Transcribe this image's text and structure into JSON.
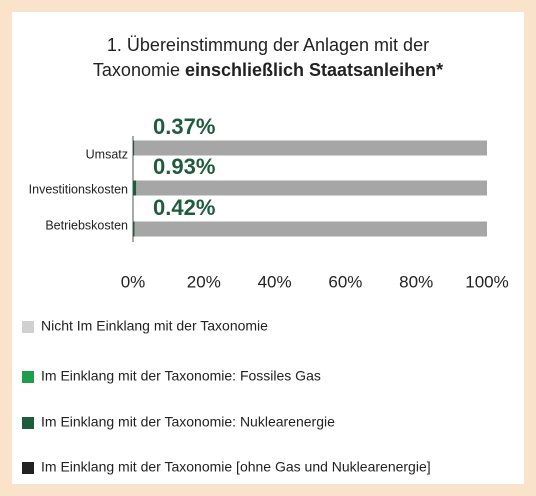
{
  "chart_data": {
    "type": "stacked_barh",
    "title_lines": [
      "1. Übereinstimmung der Anlagen mit der",
      "Taxonomie"
    ],
    "title_bold": "einschließlich Staatsanleihen*",
    "categories": [
      "Umsatz",
      "Investitionskosten",
      "Betriebskosten"
    ],
    "series": [
      {
        "name": "Nicht Im Einklang mit der Taxonomie",
        "color": "#a6a6a6",
        "legend_color": "#d0d0d0",
        "values": [
          99.63,
          99.07,
          99.58
        ]
      },
      {
        "name": "Im Einklang mit der Taxonomie: Fossiles Gas",
        "color": "#1e9e4a",
        "values": [
          0,
          0,
          0
        ]
      },
      {
        "name": "Im Einklang mit der Taxonomie: Nuklearenergie",
        "color": "#1e5c3b",
        "values": [
          0.37,
          0.93,
          0.42
        ],
        "value_labels": [
          "0.37%",
          "0.93%",
          "0.42%"
        ]
      },
      {
        "name": "Im Einklang mit der Taxonomie [ohne Gas und Nuklearenergie]",
        "color": "#222222",
        "values": [
          0,
          0,
          0
        ]
      }
    ],
    "xlim": [
      0,
      100
    ],
    "xticks": [
      {
        "value": 0,
        "label": "0%"
      },
      {
        "value": 20,
        "label": "20%"
      },
      {
        "value": 40,
        "label": "40%"
      },
      {
        "value": 60,
        "label": "60%"
      },
      {
        "value": 80,
        "label": "80%"
      },
      {
        "value": 100,
        "label": "100%"
      }
    ],
    "grid": false
  }
}
